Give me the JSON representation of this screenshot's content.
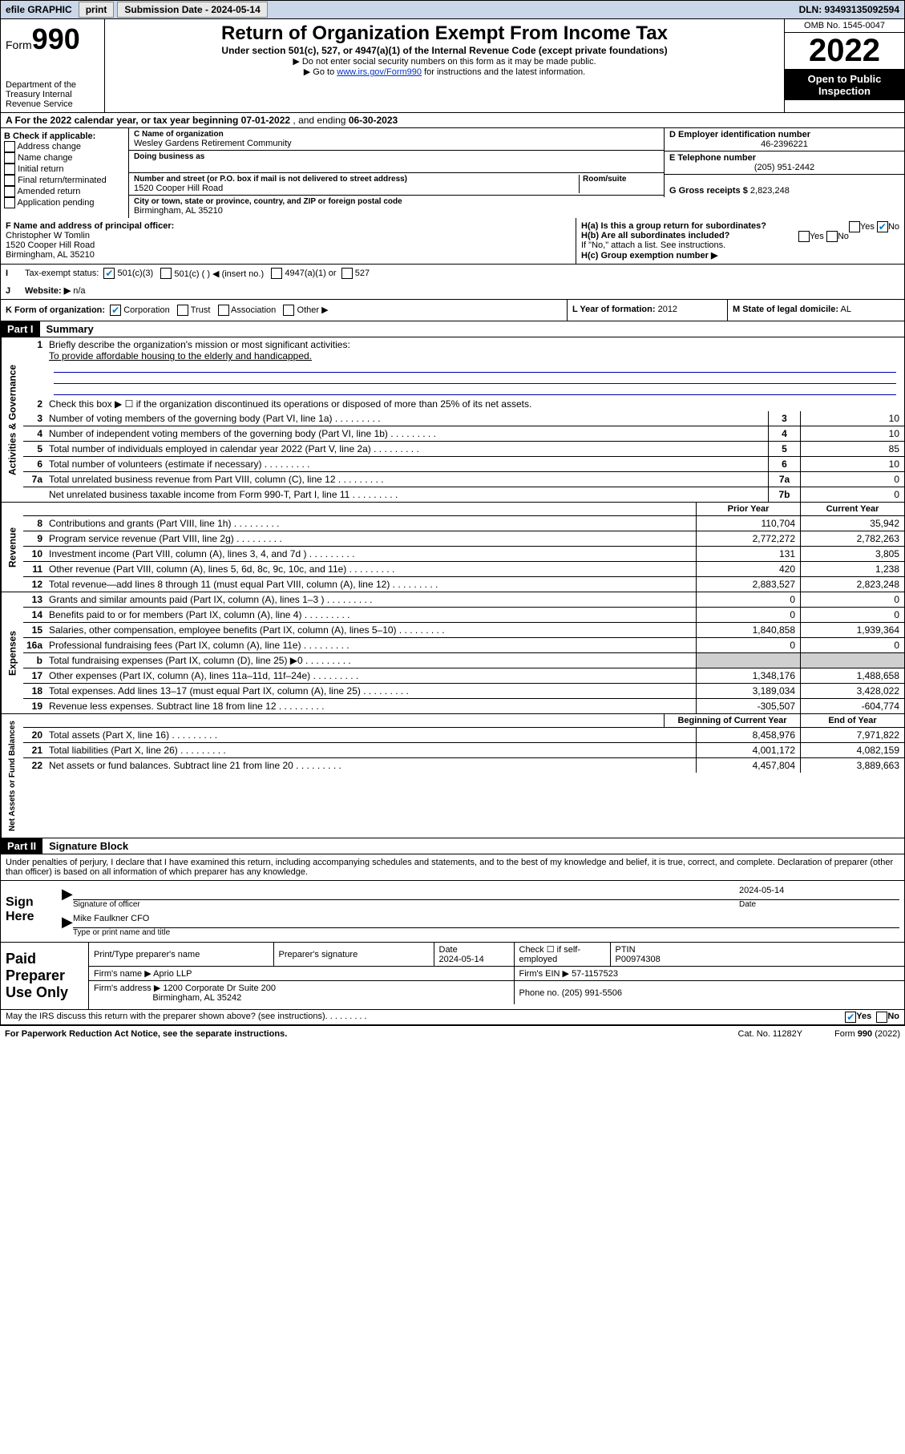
{
  "topbar": {
    "efile": "efile GRAPHIC",
    "print": "print",
    "sub_label": "Submission Date - 2024-05-14",
    "dln": "DLN: 93493135092594"
  },
  "header": {
    "form_word": "Form",
    "form_num": "990",
    "dept": "Department of the Treasury Internal Revenue Service",
    "title": "Return of Organization Exempt From Income Tax",
    "sub1": "Under section 501(c), 527, or 4947(a)(1) of the Internal Revenue Code (except private foundations)",
    "sub2": "▶ Do not enter social security numbers on this form as it may be made public.",
    "sub3_pre": "▶ Go to ",
    "sub3_link": "www.irs.gov/Form990",
    "sub3_post": " for instructions and the latest information.",
    "omb": "OMB No. 1545-0047",
    "year": "2022",
    "pub": "Open to Public Inspection"
  },
  "rowA": {
    "text_pre": "A For the 2022 calendar year, or tax year beginning ",
    "begin": "07-01-2022",
    "mid": " , and ending ",
    "end": "06-30-2023"
  },
  "colB": {
    "hdr": "B Check if applicable:",
    "opts": [
      "Address change",
      "Name change",
      "Initial return",
      "Final return/terminated",
      "Amended return",
      "Application pending"
    ]
  },
  "colC": {
    "c_lbl": "C Name of organization",
    "c_val": "Wesley Gardens Retirement Community",
    "dba_lbl": "Doing business as",
    "dba_val": "",
    "addr_lbl": "Number and street (or P.O. box if mail is not delivered to street address)",
    "room_lbl": "Room/suite",
    "addr_val": "1520 Cooper Hill Road",
    "city_lbl": "City or town, state or province, country, and ZIP or foreign postal code",
    "city_val": "Birmingham, AL  35210"
  },
  "colD": {
    "d_lbl": "D Employer identification number",
    "d_val": "46-2396221",
    "e_lbl": "E Telephone number",
    "e_val": "(205) 951-2442",
    "g_lbl": "G Gross receipts $",
    "g_val": "2,823,248"
  },
  "rowF": {
    "f_lbl": "F Name and address of principal officer:",
    "f_name": "Christopher W Tomlin",
    "f_addr1": "1520 Cooper Hill Road",
    "f_addr2": "Birmingham, AL  35210",
    "ha_lbl": "H(a)  Is this a group return for subordinates?",
    "ha_yes": "Yes",
    "ha_no": "No",
    "hb_lbl": "H(b)  Are all subordinates included?",
    "hb_yes": "Yes",
    "hb_no": "No",
    "hb_note": "If \"No,\" attach a list. See instructions.",
    "hc_lbl": "H(c)  Group exemption number ▶"
  },
  "rowI": {
    "lbl": "I",
    "txt": "Tax-exempt status:",
    "o1": "501(c)(3)",
    "o2": "501(c) (  ) ◀ (insert no.)",
    "o3": "4947(a)(1) or",
    "o4": "527"
  },
  "rowJ": {
    "lbl": "J",
    "txt": "Website: ▶",
    "val": "n/a"
  },
  "rowK": {
    "k_lbl": "K Form of organization:",
    "k_opts": [
      "Corporation",
      "Trust",
      "Association",
      "Other ▶"
    ],
    "l_lbl": "L Year of formation:",
    "l_val": "2012",
    "m_lbl": "M State of legal domicile:",
    "m_val": "AL"
  },
  "part1": {
    "tag": "Part I",
    "title": "Summary"
  },
  "gov": {
    "vlabel": "Activities & Governance",
    "l1_pre": "Briefly describe the organization's mission or most significant activities:",
    "l1_val": "To provide affordable housing to the elderly and handicapped.",
    "l2": "Check this box ▶ ☐  if the organization discontinued its operations or disposed of more than 25% of its net assets.",
    "rows": [
      {
        "n": "3",
        "d": "Number of voting members of the governing body (Part VI, line 1a)",
        "b": "3",
        "v": "10"
      },
      {
        "n": "4",
        "d": "Number of independent voting members of the governing body (Part VI, line 1b)",
        "b": "4",
        "v": "10"
      },
      {
        "n": "5",
        "d": "Total number of individuals employed in calendar year 2022 (Part V, line 2a)",
        "b": "5",
        "v": "85"
      },
      {
        "n": "6",
        "d": "Total number of volunteers (estimate if necessary)",
        "b": "6",
        "v": "10"
      },
      {
        "n": "7a",
        "d": "Total unrelated business revenue from Part VIII, column (C), line 12",
        "b": "7a",
        "v": "0"
      },
      {
        "n": "",
        "d": "Net unrelated business taxable income from Form 990-T, Part I, line 11",
        "b": "7b",
        "v": "0"
      }
    ]
  },
  "two_col_hdr": {
    "c1": "Prior Year",
    "c2": "Current Year"
  },
  "rev": {
    "vlabel": "Revenue",
    "rows": [
      {
        "n": "8",
        "d": "Contributions and grants (Part VIII, line 1h)",
        "v1": "110,704",
        "v2": "35,942"
      },
      {
        "n": "9",
        "d": "Program service revenue (Part VIII, line 2g)",
        "v1": "2,772,272",
        "v2": "2,782,263"
      },
      {
        "n": "10",
        "d": "Investment income (Part VIII, column (A), lines 3, 4, and 7d )",
        "v1": "131",
        "v2": "3,805"
      },
      {
        "n": "11",
        "d": "Other revenue (Part VIII, column (A), lines 5, 6d, 8c, 9c, 10c, and 11e)",
        "v1": "420",
        "v2": "1,238"
      },
      {
        "n": "12",
        "d": "Total revenue—add lines 8 through 11 (must equal Part VIII, column (A), line 12)",
        "v1": "2,883,527",
        "v2": "2,823,248"
      }
    ]
  },
  "exp": {
    "vlabel": "Expenses",
    "rows": [
      {
        "n": "13",
        "d": "Grants and similar amounts paid (Part IX, column (A), lines 1–3 )",
        "v1": "0",
        "v2": "0"
      },
      {
        "n": "14",
        "d": "Benefits paid to or for members (Part IX, column (A), line 4)",
        "v1": "0",
        "v2": "0"
      },
      {
        "n": "15",
        "d": "Salaries, other compensation, employee benefits (Part IX, column (A), lines 5–10)",
        "v1": "1,840,858",
        "v2": "1,939,364"
      },
      {
        "n": "16a",
        "d": "Professional fundraising fees (Part IX, column (A), line 11e)",
        "v1": "0",
        "v2": "0"
      },
      {
        "n": "b",
        "d": "Total fundraising expenses (Part IX, column (D), line 25) ▶0",
        "v1": "",
        "v2": "",
        "grey": true
      },
      {
        "n": "17",
        "d": "Other expenses (Part IX, column (A), lines 11a–11d, 11f–24e)",
        "v1": "1,348,176",
        "v2": "1,488,658"
      },
      {
        "n": "18",
        "d": "Total expenses. Add lines 13–17 (must equal Part IX, column (A), line 25)",
        "v1": "3,189,034",
        "v2": "3,428,022"
      },
      {
        "n": "19",
        "d": "Revenue less expenses. Subtract line 18 from line 12",
        "v1": "-305,507",
        "v2": "-604,774"
      }
    ]
  },
  "na_hdr": {
    "c1": "Beginning of Current Year",
    "c2": "End of Year"
  },
  "na": {
    "vlabel": "Net Assets or Fund Balances",
    "rows": [
      {
        "n": "20",
        "d": "Total assets (Part X, line 16)",
        "v1": "8,458,976",
        "v2": "7,971,822"
      },
      {
        "n": "21",
        "d": "Total liabilities (Part X, line 26)",
        "v1": "4,001,172",
        "v2": "4,082,159"
      },
      {
        "n": "22",
        "d": "Net assets or fund balances. Subtract line 21 from line 20",
        "v1": "4,457,804",
        "v2": "3,889,663"
      }
    ]
  },
  "part2": {
    "tag": "Part II",
    "title": "Signature Block"
  },
  "sig_intro": "Under penalties of perjury, I declare that I have examined this return, including accompanying schedules and statements, and to the best of my knowledge and belief, it is true, correct, and complete. Declaration of preparer (other than officer) is based on all information of which preparer has any knowledge.",
  "sign": {
    "lab": "Sign Here",
    "sig_lbl": "Signature of officer",
    "date_lbl": "Date",
    "date_val": "2024-05-14",
    "name": "Mike Faulkner CFO",
    "name_lbl": "Type or print name and title"
  },
  "paid": {
    "lab": "Paid Preparer Use Only",
    "h1": "Print/Type preparer's name",
    "h2": "Preparer's signature",
    "h3": "Date",
    "h3v": "2024-05-14",
    "h4": "Check ☐ if self-employed",
    "h5": "PTIN",
    "h5v": "P00974308",
    "firm_lbl": "Firm's name    ▶",
    "firm": "Aprio LLP",
    "ein_lbl": "Firm's EIN ▶",
    "ein": "57-1157523",
    "addr_lbl": "Firm's address ▶",
    "addr1": "1200 Corporate Dr Suite 200",
    "addr2": "Birmingham, AL  35242",
    "phone_lbl": "Phone no.",
    "phone": "(205) 991-5506"
  },
  "footer": {
    "q": "May the IRS discuss this return with the preparer shown above? (see instructions)",
    "yes": "Yes",
    "no": "No",
    "pra": "For Paperwork Reduction Act Notice, see the separate instructions.",
    "cat": "Cat. No. 11282Y",
    "form": "Form 990 (2022)"
  }
}
